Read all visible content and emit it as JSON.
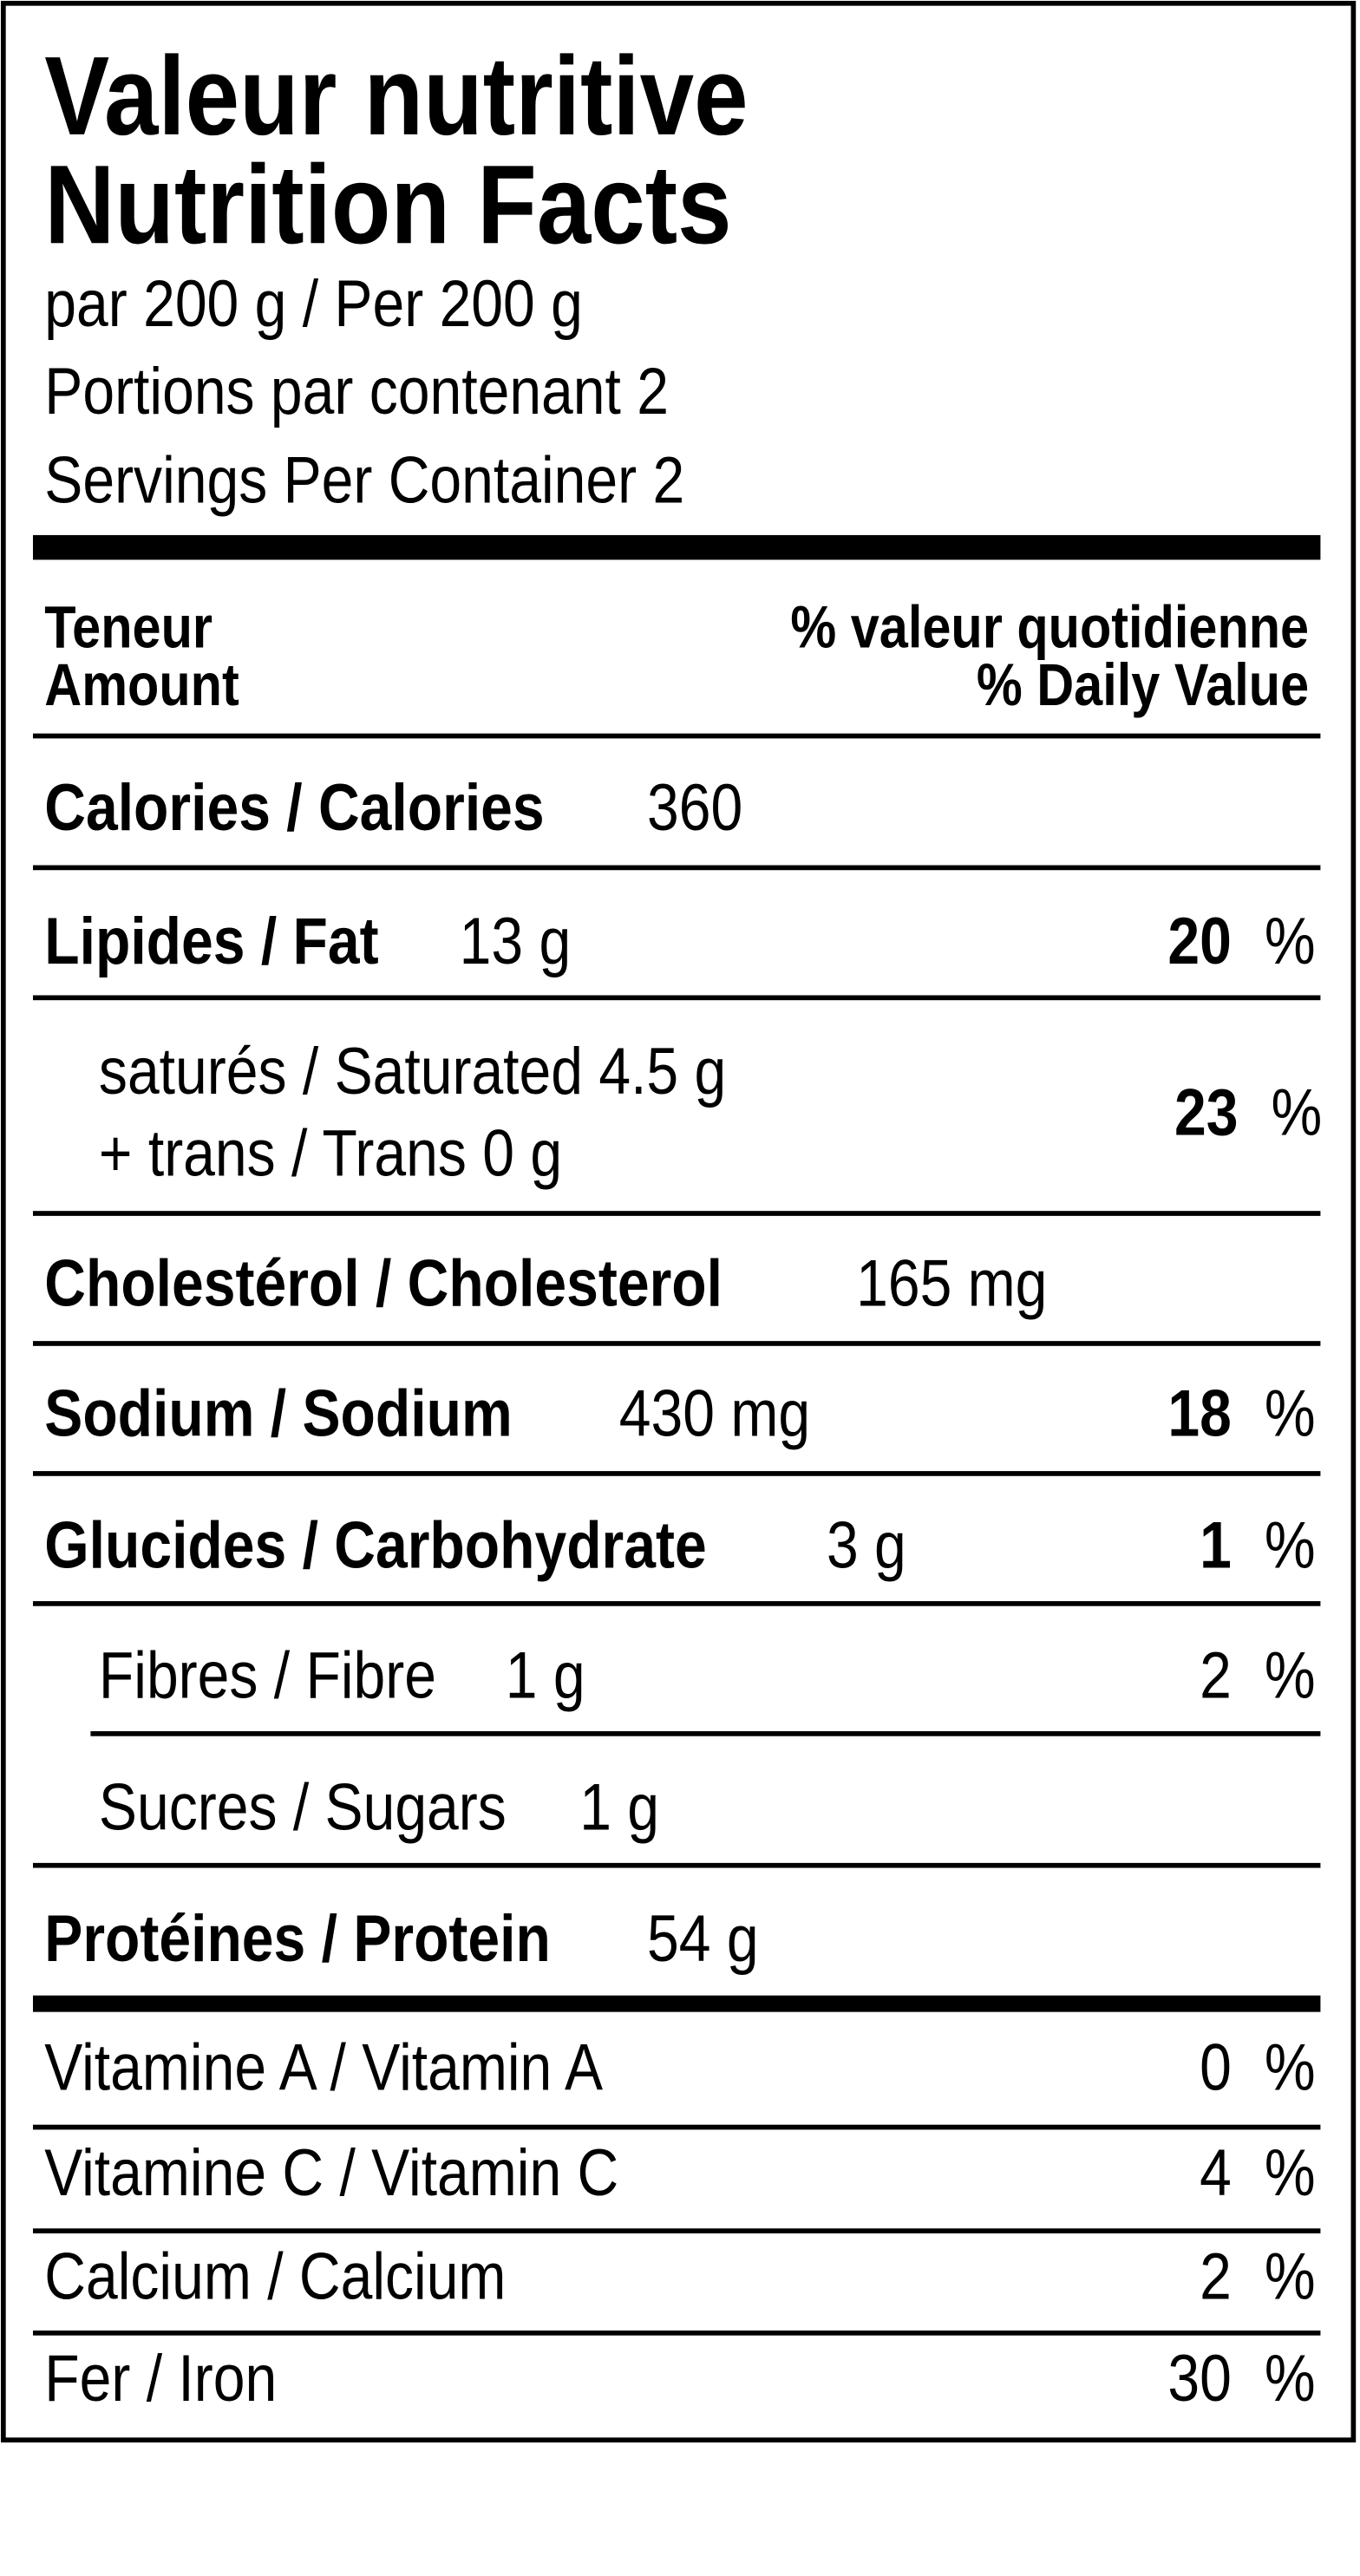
{
  "header": {
    "title_fr": "Valeur nutritive",
    "title_en": "Nutrition Facts",
    "serving": "par 200  g / Per 200  g",
    "portions_fr": "Portions par contenant 2",
    "servings_en": "Servings Per Container 2"
  },
  "columns": {
    "amount_fr": "Teneur",
    "amount_en": "Amount",
    "dv_fr": "% valeur quotidienne",
    "dv_en": "% Daily Value"
  },
  "nutrients": [
    {
      "label": "Calories / Calories",
      "amount": "360"
    },
    {
      "label": "Lipides / Fat",
      "amount": "13 g",
      "dv": "20",
      "unit": "%"
    },
    {
      "label": "saturés / Saturated 4.5 g",
      "label2": "+ trans / Trans 0 g",
      "dv": "23",
      "unit": "%"
    },
    {
      "label": "Cholestérol / Cholesterol",
      "amount": "165 mg"
    },
    {
      "label": "Sodium / Sodium",
      "amount": "430 mg",
      "dv": "18",
      "unit": "%"
    },
    {
      "label": "Glucides / Carbohydrate",
      "amount": "3 g",
      "dv": "1",
      "unit": "%"
    },
    {
      "label": "Fibres / Fibre",
      "amount": "1 g",
      "dv": "2",
      "unit": "%"
    },
    {
      "label": "Sucres / Sugars",
      "amount": "1 g"
    },
    {
      "label": "Protéines / Protein",
      "amount": "54 g"
    }
  ],
  "vitamins": [
    {
      "label": "Vitamine A / Vitamin A",
      "dv": "0",
      "unit": "%"
    },
    {
      "label": "Vitamine C / Vitamin C",
      "dv": "4",
      "unit": "%"
    },
    {
      "label": "Calcium / Calcium",
      "dv": "2",
      "unit": "%"
    },
    {
      "label": "Fer / Iron",
      "dv": "30",
      "unit": "%"
    }
  ]
}
